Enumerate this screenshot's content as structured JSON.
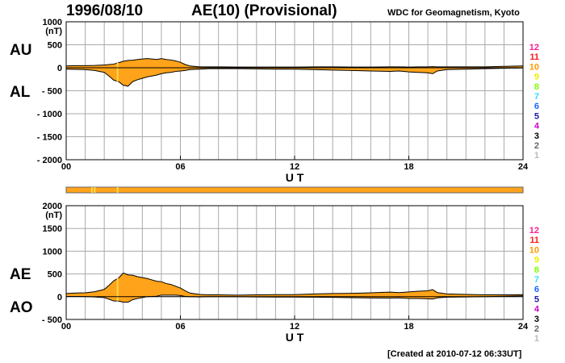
{
  "header": {
    "date": "1996/08/10",
    "title": "AE(10) (Provisional)",
    "source": "WDC for Geomagnetism, Kyoto"
  },
  "footer": {
    "created": "[Created at 2010-07-12 06:33UT]"
  },
  "colors": {
    "fill": "#ffa31a",
    "grid": "#aaaaaa",
    "station_bar_base": "#ffa31a",
    "station_bar_highlight": "#ffd84a"
  },
  "station_legend": [
    {
      "label": "12",
      "color": "#ff1f8f"
    },
    {
      "label": "11",
      "color": "#ff1a1a"
    },
    {
      "label": "10",
      "color": "#ff9b00"
    },
    {
      "label": "9",
      "color": "#eeee00"
    },
    {
      "label": "8",
      "color": "#7fff00"
    },
    {
      "label": "7",
      "color": "#33ddff"
    },
    {
      "label": "6",
      "color": "#1a66ff"
    },
    {
      "label": "5",
      "color": "#1a1aaa"
    },
    {
      "label": "4",
      "color": "#cc00cc"
    },
    {
      "label": "3",
      "color": "#000000"
    },
    {
      "label": "2",
      "color": "#666666"
    },
    {
      "label": "1",
      "color": "#bbbbbb"
    }
  ],
  "chart_data": [
    {
      "type": "area",
      "ylabel": "(nT)",
      "xlabel": "U T",
      "series_labels": [
        "AU",
        "AL"
      ],
      "xlim": [
        0,
        24
      ],
      "ylim": [
        -2000,
        1000
      ],
      "x_ticks": [
        "00",
        "06",
        "12",
        "18",
        "24"
      ],
      "y_ticks": [
        "1000",
        "500",
        "0",
        "- 500",
        "- 1000",
        "- 1500",
        "- 2000"
      ],
      "y_tick_values": [
        1000,
        500,
        0,
        -500,
        -1000,
        -1500,
        -2000
      ],
      "x": [
        0,
        0.5,
        1,
        1.5,
        2,
        2.25,
        2.5,
        2.75,
        3,
        3.25,
        3.5,
        3.75,
        4,
        4.25,
        4.5,
        4.75,
        5,
        5.25,
        5.5,
        5.75,
        6,
        6.25,
        6.5,
        7,
        7.5,
        8,
        9,
        10,
        11,
        12,
        13,
        14,
        15,
        16,
        17,
        17.5,
        18,
        18.5,
        19,
        19.25,
        19.5,
        20,
        21,
        22,
        23,
        24
      ],
      "au": [
        40,
        45,
        45,
        50,
        60,
        70,
        80,
        110,
        140,
        160,
        165,
        180,
        190,
        200,
        190,
        180,
        200,
        180,
        170,
        150,
        120,
        70,
        40,
        20,
        20,
        20,
        15,
        15,
        15,
        15,
        20,
        20,
        15,
        15,
        20,
        20,
        15,
        20,
        20,
        25,
        20,
        20,
        20,
        20,
        30,
        40
      ],
      "al": [
        -30,
        -35,
        -40,
        -60,
        -100,
        -180,
        -270,
        -300,
        -380,
        -400,
        -300,
        -260,
        -230,
        -200,
        -180,
        -160,
        -130,
        -110,
        -100,
        -80,
        -70,
        -60,
        -40,
        -30,
        -20,
        -20,
        -20,
        -25,
        -30,
        -30,
        -40,
        -50,
        -60,
        -70,
        -80,
        -70,
        -90,
        -100,
        -110,
        -130,
        -70,
        -40,
        -30,
        -20,
        -10,
        -5
      ]
    },
    {
      "type": "area",
      "ylabel": "(nT)",
      "xlabel": "U T",
      "series_labels": [
        "AE",
        "AO"
      ],
      "xlim": [
        0,
        24
      ],
      "ylim": [
        -500,
        2000
      ],
      "x_ticks": [
        "00",
        "06",
        "12",
        "18",
        "24"
      ],
      "y_ticks": [
        "2000",
        "1500",
        "1000",
        "500",
        "0",
        "- 500"
      ],
      "y_tick_values": [
        2000,
        1500,
        1000,
        500,
        0,
        -500
      ],
      "x": [
        0,
        0.5,
        1,
        1.5,
        2,
        2.25,
        2.5,
        2.75,
        3,
        3.25,
        3.5,
        3.75,
        4,
        4.25,
        4.5,
        4.75,
        5,
        5.25,
        5.5,
        5.75,
        6,
        6.25,
        6.5,
        7,
        7.5,
        8,
        9,
        10,
        11,
        12,
        13,
        14,
        15,
        16,
        17,
        17.5,
        18,
        18.5,
        19,
        19.25,
        19.5,
        20,
        21,
        22,
        23,
        24
      ],
      "ae": [
        70,
        80,
        85,
        110,
        160,
        250,
        350,
        410,
        520,
        480,
        470,
        440,
        420,
        400,
        370,
        340,
        330,
        290,
        270,
        230,
        190,
        130,
        80,
        50,
        40,
        40,
        35,
        40,
        45,
        45,
        60,
        70,
        75,
        85,
        100,
        90,
        105,
        120,
        130,
        155,
        90,
        60,
        50,
        40,
        40,
        45
      ],
      "ao": [
        5,
        5,
        2,
        -5,
        -20,
        -55,
        -95,
        -95,
        -120,
        -120,
        -65,
        -40,
        -20,
        0,
        5,
        10,
        35,
        35,
        35,
        35,
        25,
        5,
        0,
        -5,
        0,
        0,
        -2,
        -5,
        -8,
        -8,
        -10,
        -15,
        -22,
        -28,
        -30,
        -25,
        -38,
        -40,
        -45,
        -52,
        -25,
        -10,
        -5,
        0,
        10,
        18
      ]
    }
  ],
  "station_bar": {
    "highlights": [
      1.35,
      1.5,
      2.7
    ]
  }
}
